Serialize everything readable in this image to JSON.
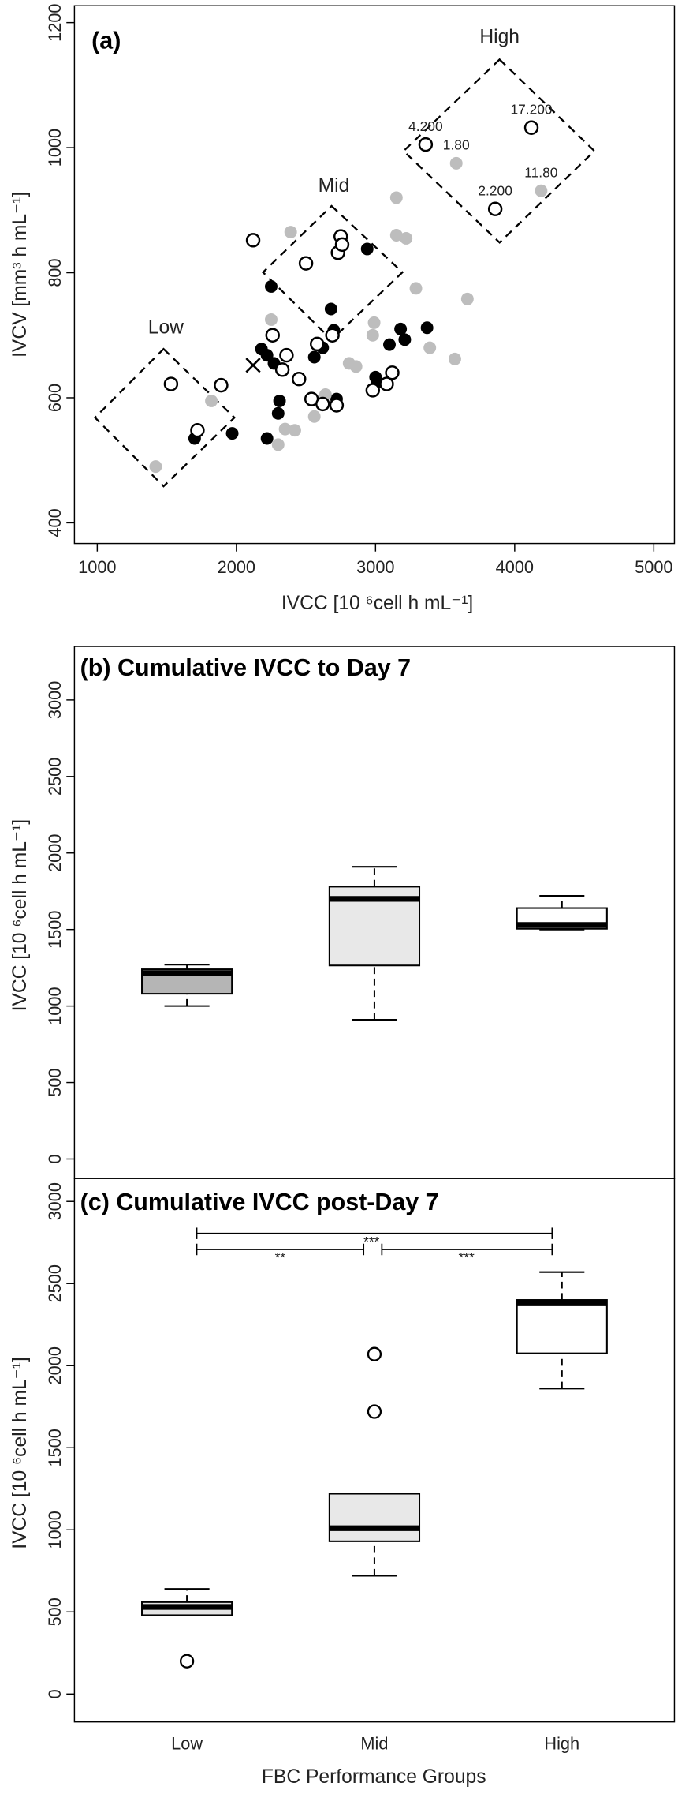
{
  "chart_data": [
    {
      "type": "scatter",
      "panel": "(a)",
      "xlabel": "IVCC [10 ⁶cell h mL⁻¹]",
      "ylabel": "IVCV [mm³ h mL⁻¹]",
      "xlim": [
        836,
        5148
      ],
      "ylim": [
        367,
        1227
      ],
      "xticks": [
        1000,
        2000,
        3000,
        4000,
        5000
      ],
      "yticks": [
        400,
        600,
        800,
        1000,
        1200
      ],
      "annotations": [
        "Low",
        "Mid",
        "High"
      ],
      "series": [
        {
          "color": "#000000",
          "marker": "filled",
          "x": [
            1700,
            1970,
            2180,
            2220,
            2270,
            2250,
            2310,
            2300,
            2220,
            2560,
            2620,
            2680,
            2700,
            2720,
            2940,
            3000,
            3010,
            3100,
            3180,
            3210,
            3370
          ],
          "y": [
            535,
            543,
            678,
            668,
            655,
            778,
            595,
            575,
            535,
            665,
            680,
            742,
            708,
            598,
            838,
            633,
            625,
            685,
            710,
            693,
            712
          ]
        },
        {
          "color": "#bdbdbd",
          "marker": "filled",
          "x": [
            1420,
            1820,
            2250,
            2300,
            2350,
            2420,
            2390,
            2560,
            2640,
            2810,
            2860,
            2990,
            2980,
            3150,
            3150,
            3220,
            3290,
            3390,
            3570,
            3660,
            3580,
            4190
          ],
          "y": [
            490,
            595,
            725,
            525,
            550,
            548,
            865,
            570,
            605,
            655,
            650,
            720,
            700,
            920,
            860,
            855,
            775,
            680,
            662,
            758,
            975,
            931
          ],
          "labels": [
            null,
            null,
            null,
            null,
            null,
            null,
            null,
            null,
            null,
            null,
            null,
            null,
            null,
            null,
            null,
            null,
            null,
            null,
            null,
            null,
            "1.80",
            "11.80"
          ]
        },
        {
          "color": "#000000",
          "marker": "open",
          "x": [
            1530,
            1720,
            1890,
            2120,
            2260,
            2330,
            2360,
            2450,
            2500,
            2540,
            2620,
            2580,
            2690,
            2730,
            2750,
            2760,
            2720,
            2980,
            3080,
            3120,
            3360,
            3860,
            4120
          ],
          "y": [
            622,
            548,
            620,
            852,
            700,
            645,
            668,
            630,
            815,
            598,
            590,
            686,
            700,
            832,
            858,
            845,
            588,
            612,
            622,
            640,
            1005,
            902,
            1032
          ],
          "labels": [
            null,
            null,
            null,
            null,
            null,
            null,
            null,
            null,
            null,
            null,
            null,
            null,
            null,
            null,
            null,
            null,
            null,
            null,
            null,
            null,
            "4.200",
            "2.200",
            "17.200"
          ]
        },
        {
          "color": "#000000",
          "marker": "cross",
          "x": [
            2120
          ],
          "y": [
            652
          ]
        }
      ]
    },
    {
      "type": "box",
      "title": "(b) Cumulative IVCC to Day 7",
      "ylabel": "IVCC [10 ⁶cell h mL⁻¹]",
      "categories": [
        null,
        null,
        null
      ],
      "ylim": [
        -127,
        3350
      ],
      "yticks": [
        0,
        500,
        1000,
        1500,
        2000,
        2500,
        3000
      ],
      "colors": [
        "#b5b5b5",
        "#e8e8e8",
        "#ffffff"
      ],
      "boxes": [
        {
          "low": 1000,
          "q1": 1080,
          "median": 1215,
          "q3": 1240,
          "high": 1270,
          "outliers": []
        },
        {
          "low": 910,
          "q1": 1265,
          "median": 1700,
          "q3": 1780,
          "high": 1910,
          "outliers": []
        },
        {
          "low": 1500,
          "q1": 1505,
          "median": 1530,
          "q3": 1640,
          "high": 1720,
          "outliers": []
        }
      ]
    },
    {
      "type": "box",
      "title": "(c) Cumulative IVCC post-Day 7",
      "ylabel": "IVCC [10 ⁶cell h mL⁻¹]",
      "xlabel": "FBC Performance Groups",
      "categories": [
        "Low",
        "Mid",
        "High"
      ],
      "ylim": [
        -170,
        3140
      ],
      "yticks": [
        0,
        500,
        1000,
        1500,
        2000,
        2500,
        3000
      ],
      "colors": [
        "#e3e3e3",
        "#e8e8e8",
        "#ffffff"
      ],
      "annotations": [
        "**",
        "***",
        "***"
      ],
      "boxes": [
        {
          "low": 480,
          "q1": 480,
          "median": 530,
          "q3": 560,
          "high": 640,
          "outliers": [
            200
          ]
        },
        {
          "low": 720,
          "q1": 930,
          "median": 1010,
          "q3": 1220,
          "high": 1220,
          "outliers": [
            1720,
            2070
          ]
        },
        {
          "low": 1860,
          "q1": 2075,
          "median": 2380,
          "q3": 2400,
          "high": 2570,
          "outliers": []
        }
      ]
    }
  ]
}
